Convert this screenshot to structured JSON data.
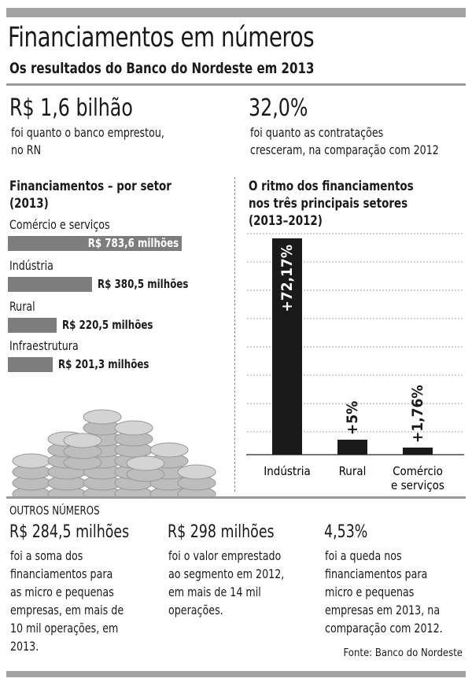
{
  "header": {
    "title": "Financiamentos em números",
    "subtitle": "Os resultados do Banco do Nordeste em 2013"
  },
  "highlights": [
    {
      "value": "R$ 1,6 bilhão",
      "lines": [
        "foi quanto o banco emprestou,",
        "no RN"
      ]
    },
    {
      "value": "32,0%",
      "lines": [
        "foi quanto as contratações",
        "cresceram, na comparação com 2012"
      ]
    }
  ],
  "chart_data": [
    {
      "type": "bar",
      "orientation": "horizontal",
      "title": "Financiamentos – por setor",
      "subtitle": "(2013)",
      "unit": "R$ milhões",
      "categories": [
        "Comércio e serviços",
        "Indústria",
        "Rural",
        "Infraestrutura"
      ],
      "values": [
        783.6,
        380.5,
        220.5,
        201.3
      ],
      "labels": [
        "R$ 783,6 milhões",
        "R$ 380,5 milhões",
        "R$ 220,5 milhões",
        "R$ 201,3 milhões"
      ]
    },
    {
      "type": "bar",
      "orientation": "vertical",
      "title": [
        "O ritmo dos financiamentos",
        "nos três principais setores",
        "(2013–2012)"
      ],
      "unit": "%",
      "categories": [
        [
          "Indústria"
        ],
        [
          "Rural"
        ],
        [
          "Comércio",
          "e serviços"
        ]
      ],
      "values": [
        72.17,
        5,
        1.76
      ],
      "labels": [
        "+72,17%",
        "+5%",
        "+1,76%"
      ],
      "grid": true
    }
  ],
  "outros": {
    "heading": "OUTROS NÚMEROS",
    "items": [
      {
        "value": "R$ 284,5 milhões",
        "lines": [
          "foi a soma dos",
          "financiamentos para",
          "as micro e pequenas",
          "empresas, em mais de",
          "10 mil operações, em",
          "2013."
        ]
      },
      {
        "value": "R$ 298 milhões",
        "lines": [
          "foi o valor emprestado",
          "ao segmento em 2012,",
          "em mais de 14 mil",
          "operações."
        ]
      },
      {
        "value": "4,53%",
        "lines": [
          "foi a queda nos",
          "financiamentos para",
          "micro e pequenas",
          "empresas em 2013, na",
          "comparação com 2012."
        ]
      }
    ]
  },
  "source": "Fonte: Banco do Nordeste",
  "colors": {
    "bar_gray": "#7d7d7d",
    "bar_black": "#1a1a1a",
    "rule": "#9a9a9a"
  }
}
